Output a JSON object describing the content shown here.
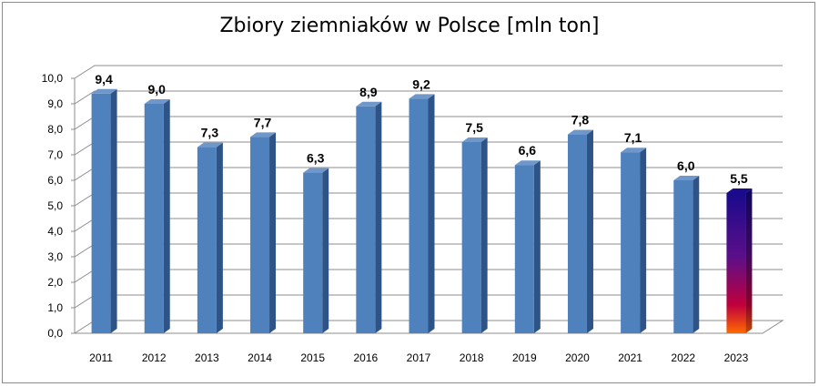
{
  "chart_data": {
    "type": "bar",
    "title": "Zbiory ziemniaków w Polsce [mln ton]",
    "xlabel": "",
    "ylabel": "",
    "categories": [
      "2011",
      "2012",
      "2013",
      "2014",
      "2015",
      "2016",
      "2017",
      "2018",
      "2019",
      "2020",
      "2021",
      "2022",
      "2023"
    ],
    "values": [
      9.4,
      9.0,
      7.3,
      7.7,
      6.3,
      8.9,
      9.2,
      7.5,
      6.6,
      7.8,
      7.1,
      6.0,
      5.5
    ],
    "value_labels": [
      "9,4",
      "9,0",
      "7,3",
      "7,7",
      "6,3",
      "8,9",
      "9,2",
      "7,5",
      "6,6",
      "7,8",
      "7,1",
      "6,0",
      "5,5"
    ],
    "ylim": [
      0,
      10
    ],
    "yticks": [
      "0,0",
      "1,0",
      "2,0",
      "3,0",
      "4,0",
      "5,0",
      "6,0",
      "7,0",
      "8,0",
      "9,0",
      "10,0"
    ],
    "grid": true,
    "colors": {
      "bar": "#4f81bd",
      "bar_side": "#2e5487",
      "bar_top": "#6f97c9",
      "highlight_top": "#1a0a8c",
      "highlight_mid": "#c0003c",
      "highlight_bottom": "#ff6a00",
      "grid": "#8c8c8c"
    }
  }
}
